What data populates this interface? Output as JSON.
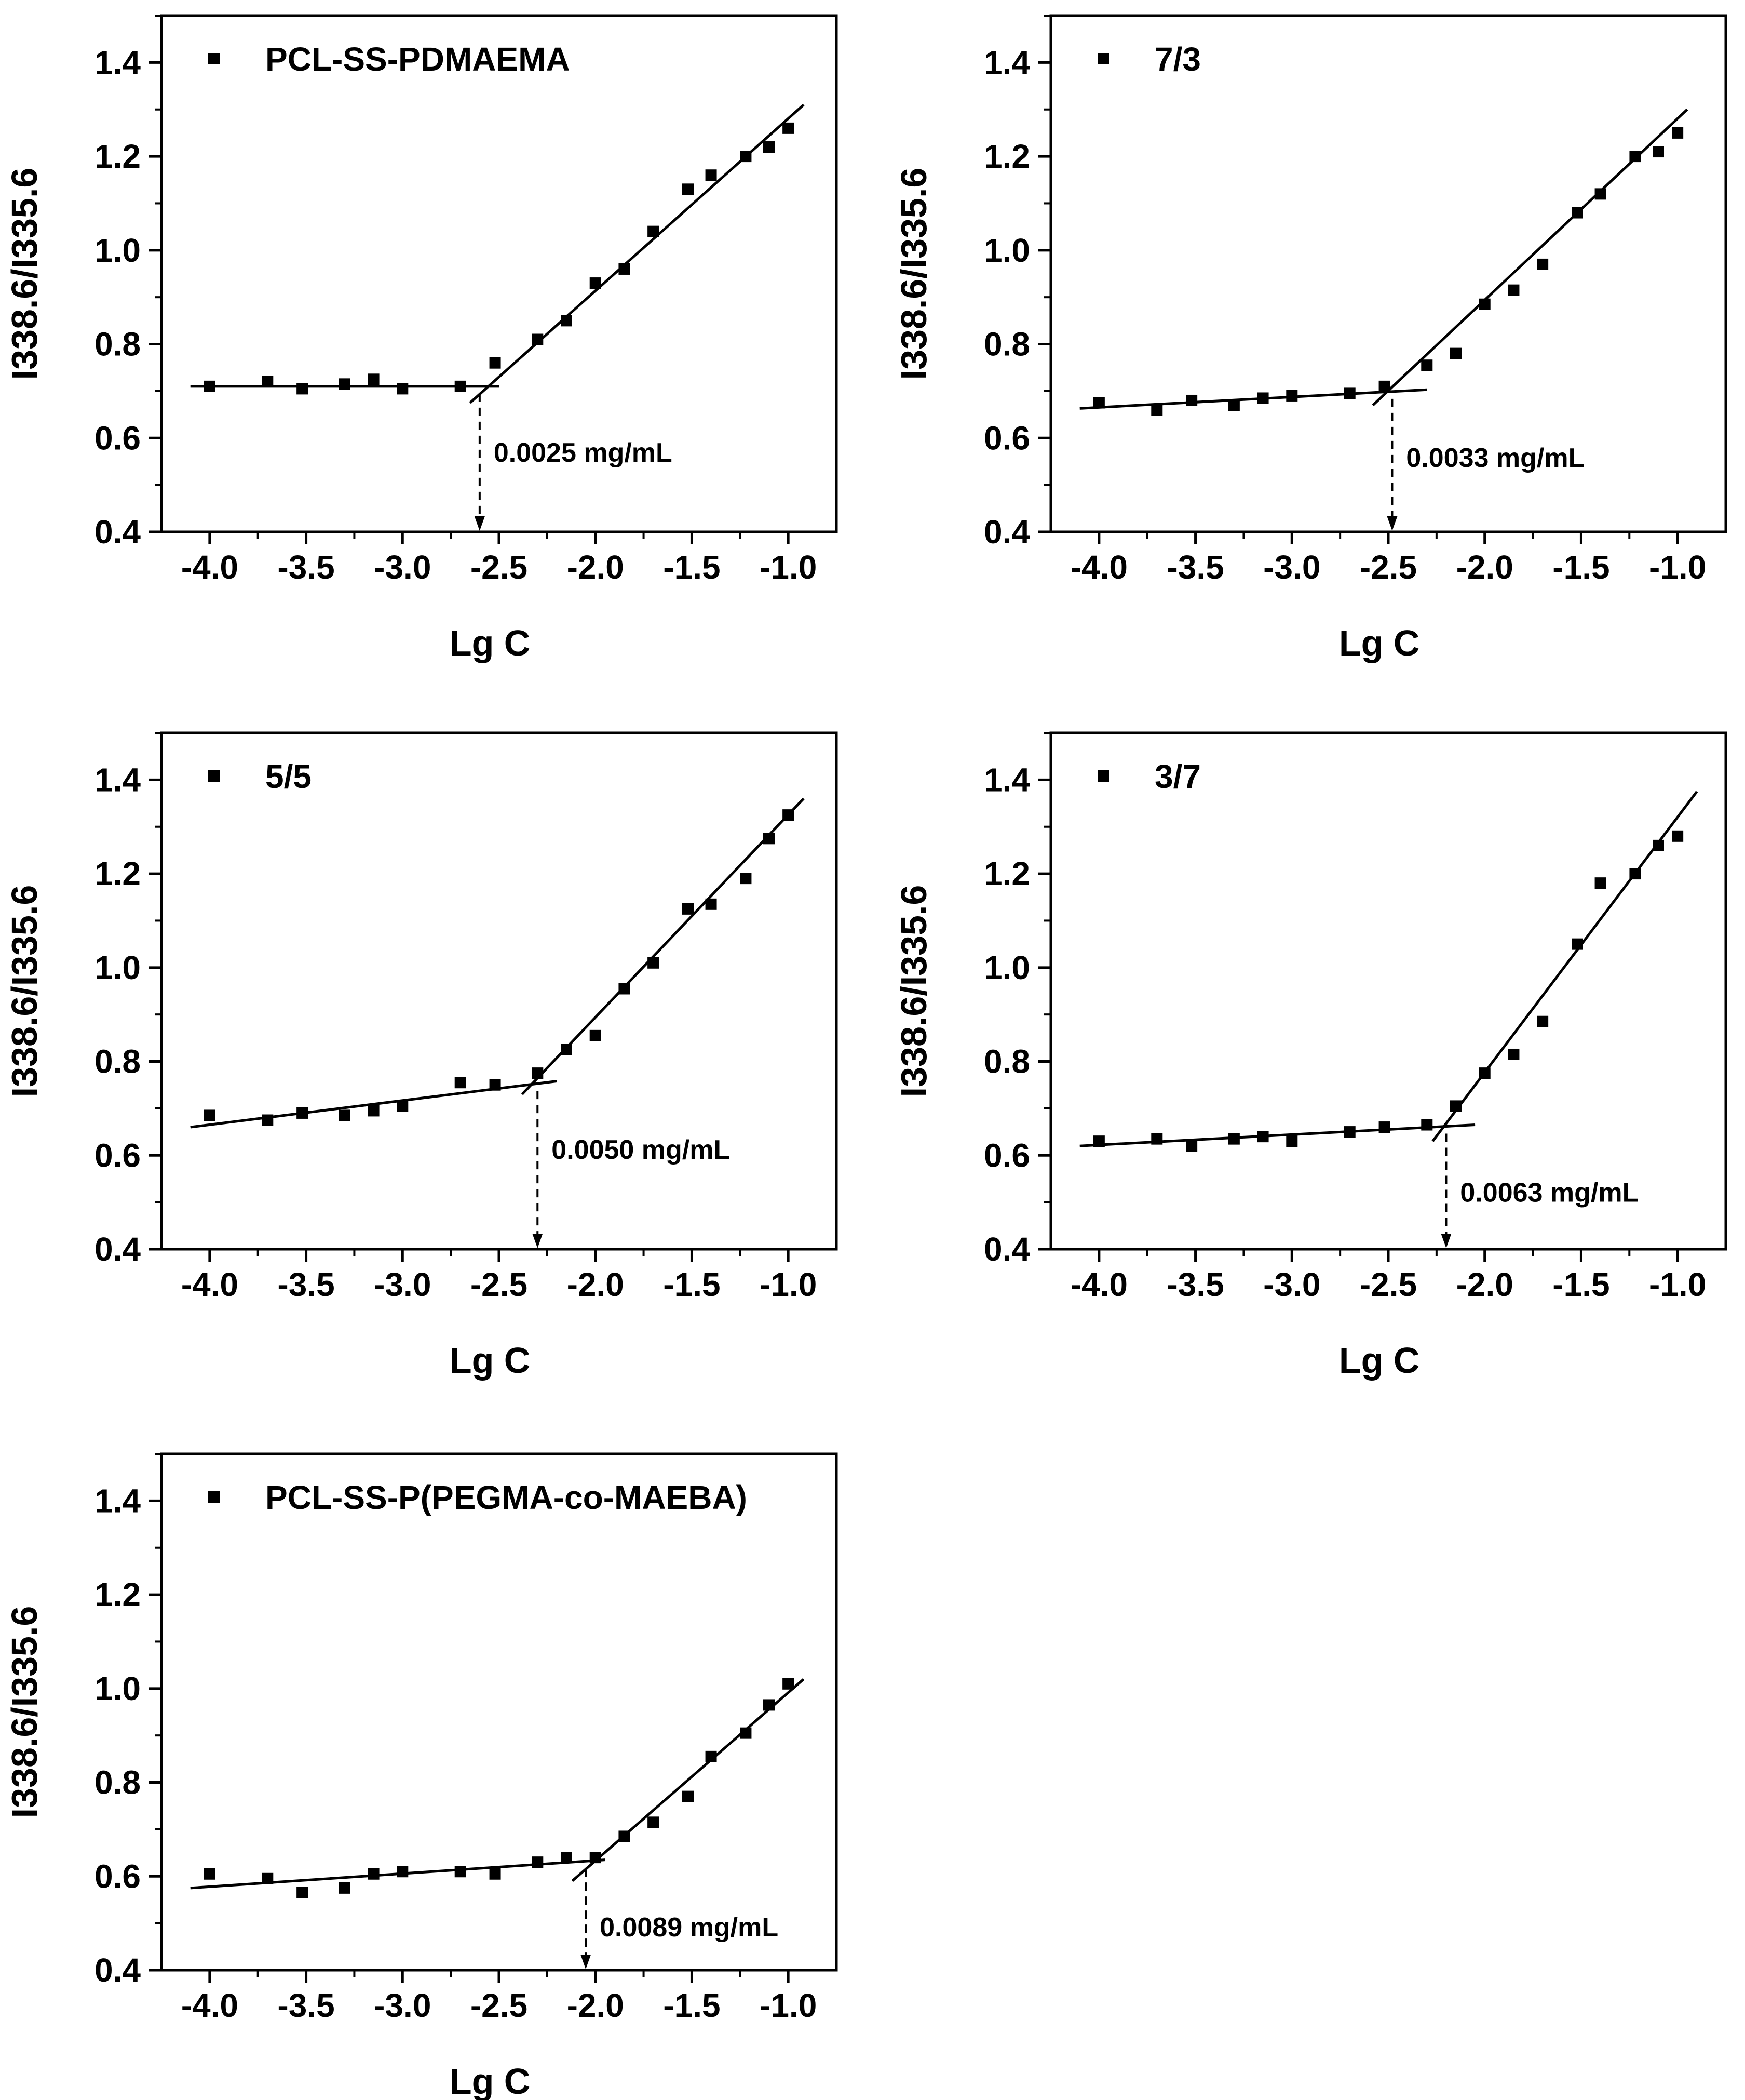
{
  "chart_data": [
    {
      "type": "scatter",
      "legend": "PCL-SS-PDMAEMA",
      "legend_position": "top-left",
      "xlabel": "Lg C",
      "ylabel": "I338.6/I335.6",
      "xlim": [
        -4.25,
        -0.75
      ],
      "ylim": [
        0.4,
        1.5
      ],
      "xticks": [
        "-4.0",
        "-3.5",
        "-3.0",
        "-2.5",
        "-2.0",
        "-1.5",
        "-1.0"
      ],
      "yticks": [
        "0.4",
        "0.6",
        "0.8",
        "1.0",
        "1.2",
        "1.4"
      ],
      "x": [
        -4.0,
        -3.7,
        -3.52,
        -3.3,
        -3.15,
        -3.0,
        -2.7,
        -2.52,
        -2.3,
        -2.15,
        -2.0,
        -1.85,
        -1.7,
        -1.52,
        -1.4,
        -1.22,
        -1.1,
        -1.0
      ],
      "y": [
        0.71,
        0.72,
        0.705,
        0.715,
        0.725,
        0.705,
        0.71,
        0.76,
        0.81,
        0.85,
        0.93,
        0.96,
        1.04,
        1.13,
        1.16,
        1.2,
        1.22,
        1.26
      ],
      "fit_lines": [
        {
          "x": [
            -4.1,
            -2.5
          ],
          "y": [
            0.71,
            0.71
          ]
        },
        {
          "x": [
            -2.65,
            -0.92
          ],
          "y": [
            0.675,
            1.31
          ]
        }
      ],
      "cmc_x": -2.6,
      "annotation": "0.0025 mg/mL"
    },
    {
      "type": "scatter",
      "legend": "7/3",
      "legend_position": "top-left",
      "xlabel": "Lg C",
      "ylabel": "I338.6/I335.6",
      "xlim": [
        -4.25,
        -0.75
      ],
      "ylim": [
        0.4,
        1.5
      ],
      "xticks": [
        "-4.0",
        "-3.5",
        "-3.0",
        "-2.5",
        "-2.0",
        "-1.5",
        "-1.0"
      ],
      "yticks": [
        "0.4",
        "0.6",
        "0.8",
        "1.0",
        "1.2",
        "1.4"
      ],
      "x": [
        -4.0,
        -3.7,
        -3.52,
        -3.3,
        -3.15,
        -3.0,
        -2.7,
        -2.52,
        -2.3,
        -2.15,
        -2.0,
        -1.85,
        -1.7,
        -1.52,
        -1.4,
        -1.22,
        -1.1,
        -1.0
      ],
      "y": [
        0.675,
        0.66,
        0.68,
        0.67,
        0.685,
        0.69,
        0.695,
        0.71,
        0.755,
        0.78,
        0.885,
        0.915,
        0.97,
        1.08,
        1.12,
        1.2,
        1.21,
        1.25
      ],
      "fit_lines": [
        {
          "x": [
            -4.1,
            -2.3
          ],
          "y": [
            0.663,
            0.703
          ]
        },
        {
          "x": [
            -2.58,
            -0.95
          ],
          "y": [
            0.67,
            1.3
          ]
        }
      ],
      "cmc_x": -2.48,
      "annotation": "0.0033 mg/mL"
    },
    {
      "type": "scatter",
      "legend": "5/5",
      "legend_position": "top-left",
      "xlabel": "Lg C",
      "ylabel": "I338.6/I335.6",
      "xlim": [
        -4.25,
        -0.75
      ],
      "ylim": [
        0.4,
        1.5
      ],
      "xticks": [
        "-4.0",
        "-3.5",
        "-3.0",
        "-2.5",
        "-2.0",
        "-1.5",
        "-1.0"
      ],
      "yticks": [
        "0.4",
        "0.6",
        "0.8",
        "1.0",
        "1.2",
        "1.4"
      ],
      "x": [
        -4.0,
        -3.7,
        -3.52,
        -3.3,
        -3.15,
        -3.0,
        -2.7,
        -2.52,
        -2.3,
        -2.15,
        -2.0,
        -1.85,
        -1.7,
        -1.52,
        -1.4,
        -1.22,
        -1.1,
        -1.0
      ],
      "y": [
        0.685,
        0.675,
        0.69,
        0.685,
        0.695,
        0.705,
        0.755,
        0.75,
        0.775,
        0.825,
        0.855,
        0.955,
        1.01,
        1.125,
        1.135,
        1.19,
        1.275,
        1.325
      ],
      "fit_lines": [
        {
          "x": [
            -4.1,
            -2.2
          ],
          "y": [
            0.66,
            0.758
          ]
        },
        {
          "x": [
            -2.38,
            -0.92
          ],
          "y": [
            0.73,
            1.36
          ]
        }
      ],
      "cmc_x": -2.3,
      "annotation": "0.0050 mg/mL"
    },
    {
      "type": "scatter",
      "legend": "3/7",
      "legend_position": "top-left",
      "xlabel": "Lg C",
      "ylabel": "I338.6/I335.6",
      "xlim": [
        -4.25,
        -0.75
      ],
      "ylim": [
        0.4,
        1.5
      ],
      "xticks": [
        "-4.0",
        "-3.5",
        "-3.0",
        "-2.5",
        "-2.0",
        "-1.5",
        "-1.0"
      ],
      "yticks": [
        "0.4",
        "0.6",
        "0.8",
        "1.0",
        "1.2",
        "1.4"
      ],
      "x": [
        -4.0,
        -3.7,
        -3.52,
        -3.3,
        -3.15,
        -3.0,
        -2.7,
        -2.52,
        -2.3,
        -2.15,
        -2.0,
        -1.85,
        -1.7,
        -1.52,
        -1.4,
        -1.22,
        -1.1,
        -1.0
      ],
      "y": [
        0.63,
        0.635,
        0.62,
        0.635,
        0.64,
        0.63,
        0.65,
        0.66,
        0.665,
        0.705,
        0.775,
        0.815,
        0.885,
        1.05,
        1.18,
        1.2,
        1.26,
        1.28
      ],
      "fit_lines": [
        {
          "x": [
            -4.1,
            -2.05
          ],
          "y": [
            0.62,
            0.665
          ]
        },
        {
          "x": [
            -2.27,
            -0.9
          ],
          "y": [
            0.63,
            1.375
          ]
        }
      ],
      "cmc_x": -2.2,
      "annotation": "0.0063 mg/mL"
    },
    {
      "type": "scatter",
      "legend": "PCL-SS-P(PEGMA-co-MAEBA)",
      "legend_position": "top-left",
      "xlabel": "Lg C",
      "ylabel": "I338.6/I335.6",
      "xlim": [
        -4.25,
        -0.75
      ],
      "ylim": [
        0.4,
        1.5
      ],
      "xticks": [
        "-4.0",
        "-3.5",
        "-3.0",
        "-2.5",
        "-2.0",
        "-1.5",
        "-1.0"
      ],
      "yticks": [
        "0.4",
        "0.6",
        "0.8",
        "1.0",
        "1.2",
        "1.4"
      ],
      "x": [
        -4.0,
        -3.7,
        -3.52,
        -3.3,
        -3.15,
        -3.0,
        -2.7,
        -2.52,
        -2.3,
        -2.15,
        -2.0,
        -1.85,
        -1.7,
        -1.52,
        -1.4,
        -1.22,
        -1.1,
        -1.0
      ],
      "y": [
        0.605,
        0.595,
        0.565,
        0.575,
        0.605,
        0.61,
        0.61,
        0.605,
        0.63,
        0.64,
        0.64,
        0.685,
        0.715,
        0.77,
        0.855,
        0.905,
        0.965,
        1.01
      ],
      "fit_lines": [
        {
          "x": [
            -4.1,
            -1.95
          ],
          "y": [
            0.575,
            0.635
          ]
        },
        {
          "x": [
            -2.12,
            -0.92
          ],
          "y": [
            0.59,
            1.02
          ]
        }
      ],
      "cmc_x": -2.05,
      "annotation": "0.0089 mg/mL"
    }
  ]
}
